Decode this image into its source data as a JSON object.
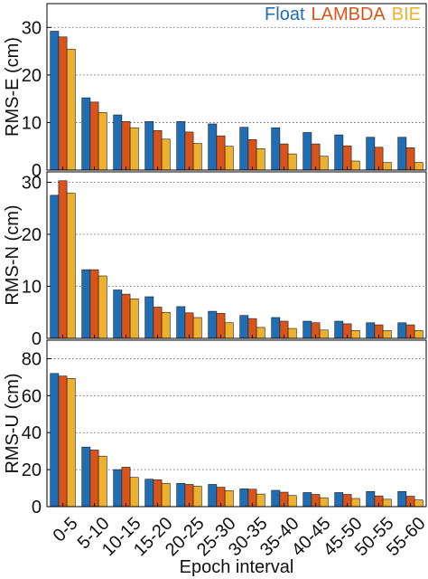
{
  "colors": {
    "float": "#1f6db4",
    "lambda": "#d9541a",
    "bie": "#edb12f"
  },
  "legend": [
    {
      "name": "Float",
      "color": "#1f6db4"
    },
    {
      "name": "LAMBDA",
      "color": "#d9541a"
    },
    {
      "name": "BIE",
      "color": "#edb12f"
    }
  ],
  "chart_data": [
    {
      "type": "bar",
      "ylabel": "RMS-E (cm)",
      "xlabel": "Epoch interval",
      "ylim": [
        0,
        35
      ],
      "yticks": [
        0,
        10,
        20,
        30
      ],
      "grid": "y-dotted",
      "legend_position": "top-right",
      "categories": [
        "0-5",
        "5-10",
        "10-15",
        "15-20",
        "20-25",
        "25-30",
        "30-35",
        "35-40",
        "40-45",
        "45-50",
        "50-55",
        "55-60"
      ],
      "series": [
        {
          "name": "Float",
          "values": [
            29.2,
            15.2,
            11.6,
            10.2,
            10.2,
            9.7,
            9.0,
            8.9,
            7.9,
            7.4,
            6.9,
            6.9
          ]
        },
        {
          "name": "LAMBDA",
          "values": [
            28.0,
            14.3,
            10.2,
            8.3,
            8.0,
            7.2,
            6.4,
            5.5,
            5.5,
            5.1,
            4.8,
            4.7
          ]
        },
        {
          "name": "BIE",
          "values": [
            25.4,
            12.1,
            8.9,
            6.5,
            5.6,
            5.0,
            4.5,
            3.4,
            2.9,
            1.9,
            1.6,
            1.6
          ]
        }
      ]
    },
    {
      "type": "bar",
      "ylabel": "RMS-N (cm)",
      "xlabel": "Epoch interval",
      "ylim": [
        0,
        32
      ],
      "yticks": [
        0,
        10,
        20,
        30
      ],
      "grid": "y-dotted",
      "categories": [
        "0-5",
        "5-10",
        "10-15",
        "15-20",
        "20-25",
        "25-30",
        "30-35",
        "35-40",
        "40-45",
        "45-50",
        "50-55",
        "55-60"
      ],
      "series": [
        {
          "name": "Float",
          "values": [
            27.5,
            13.2,
            9.3,
            8.0,
            6.1,
            5.2,
            4.4,
            4.0,
            3.3,
            3.3,
            3.0,
            3.0
          ]
        },
        {
          "name": "LAMBDA",
          "values": [
            30.3,
            13.2,
            8.5,
            6.0,
            4.9,
            4.8,
            3.8,
            3.3,
            3.0,
            2.8,
            2.6,
            2.6
          ]
        },
        {
          "name": "BIE",
          "values": [
            27.9,
            12.0,
            7.6,
            5.0,
            4.0,
            3.0,
            2.1,
            1.9,
            1.6,
            1.5,
            1.5,
            1.5
          ]
        }
      ]
    },
    {
      "type": "bar",
      "ylabel": "RMS-U (cm)",
      "xlabel": "Epoch interval",
      "ylim": [
        0,
        90
      ],
      "yticks": [
        0,
        20,
        40,
        60,
        80
      ],
      "grid": "y-dotted",
      "categories": [
        "0-5",
        "5-10",
        "10-15",
        "15-20",
        "20-25",
        "25-30",
        "30-35",
        "35-40",
        "40-45",
        "45-50",
        "50-55",
        "55-60"
      ],
      "series": [
        {
          "name": "Float",
          "values": [
            72.0,
            32.2,
            20.0,
            14.8,
            12.6,
            12.0,
            9.6,
            8.8,
            7.6,
            7.6,
            8.2,
            8.2
          ]
        },
        {
          "name": "LAMBDA",
          "values": [
            70.6,
            30.6,
            21.3,
            14.5,
            12.0,
            10.5,
            9.4,
            7.8,
            6.6,
            6.6,
            5.8,
            5.6
          ]
        },
        {
          "name": "BIE",
          "values": [
            69.3,
            27.3,
            15.8,
            12.6,
            11.0,
            8.6,
            6.8,
            6.0,
            4.8,
            4.4,
            4.0,
            3.6
          ]
        }
      ]
    }
  ]
}
